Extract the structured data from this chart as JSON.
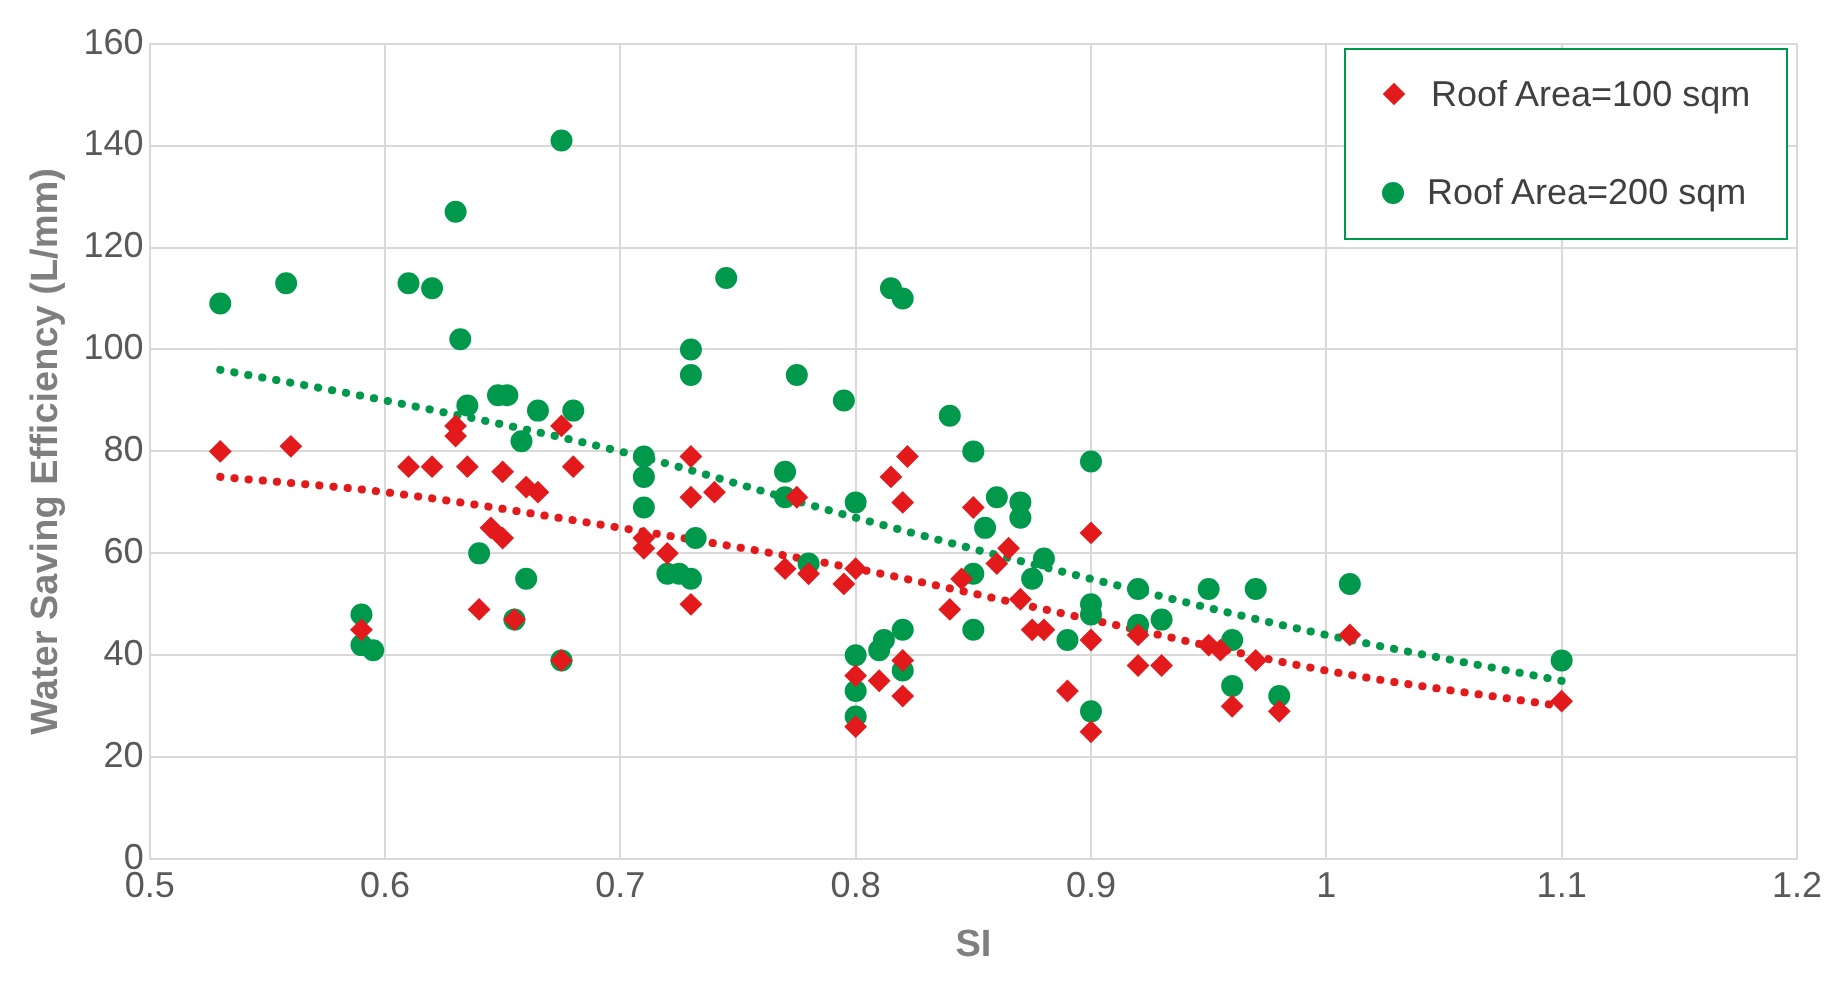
{
  "chart_data": {
    "type": "scatter",
    "xlabel": "SI",
    "ylabel": "Water Saving Efficiency (L/mm)",
    "xlim": [
      0.5,
      1.2
    ],
    "xticks": [
      {
        "value": 0.5,
        "label": "0.5"
      },
      {
        "value": 0.6,
        "label": "0.6"
      },
      {
        "value": 0.7,
        "label": "0.7"
      },
      {
        "value": 0.8,
        "label": "0.8"
      },
      {
        "value": 0.9,
        "label": "0.9"
      },
      {
        "value": 1,
        "label": "1"
      },
      {
        "value": 1.1,
        "label": "1.1"
      },
      {
        "value": 1.2,
        "label": "1.2"
      }
    ],
    "ylim": [
      0,
      160
    ],
    "yticks": [
      0,
      20,
      40,
      60,
      80,
      100,
      120,
      140,
      160
    ],
    "grid": true,
    "legend": "top right",
    "series": [
      {
        "name": "Roof Area=100 sqm",
        "type": "scatter",
        "marker": "diamond",
        "color": "#e31a1c",
        "x": [
          0.53,
          0.56,
          0.59,
          0.61,
          0.62,
          0.63,
          0.63,
          0.635,
          0.64,
          0.645,
          0.65,
          0.65,
          0.655,
          0.66,
          0.665,
          0.675,
          0.675,
          0.68,
          0.71,
          0.71,
          0.72,
          0.73,
          0.73,
          0.73,
          0.74,
          0.77,
          0.775,
          0.78,
          0.795,
          0.8,
          0.8,
          0.8,
          0.81,
          0.815,
          0.82,
          0.82,
          0.82,
          0.822,
          0.84,
          0.845,
          0.85,
          0.86,
          0.865,
          0.87,
          0.875,
          0.88,
          0.89,
          0.9,
          0.9,
          0.9,
          0.92,
          0.92,
          0.93,
          0.95,
          0.955,
          0.96,
          0.97,
          0.98,
          1.01,
          1.1
        ],
        "values": [
          80,
          81,
          45,
          77,
          77,
          85,
          83,
          77,
          49,
          65,
          63,
          76,
          47,
          73,
          72,
          85,
          39,
          77,
          61,
          63,
          60,
          79,
          71,
          50,
          72,
          57,
          71,
          56,
          54,
          57,
          36,
          26,
          35,
          75,
          39,
          32,
          70,
          79,
          49,
          55,
          69,
          58,
          61,
          51,
          45,
          45,
          33,
          64,
          43,
          25,
          44,
          38,
          38,
          42,
          41,
          30,
          39,
          29,
          44,
          31
        ]
      },
      {
        "name": "Roof Area=200 sqm",
        "type": "scatter",
        "marker": "circle",
        "color": "#00994c",
        "x": [
          0.53,
          0.558,
          0.59,
          0.59,
          0.595,
          0.61,
          0.62,
          0.63,
          0.632,
          0.635,
          0.64,
          0.648,
          0.652,
          0.655,
          0.658,
          0.66,
          0.665,
          0.675,
          0.675,
          0.68,
          0.71,
          0.71,
          0.71,
          0.72,
          0.725,
          0.73,
          0.73,
          0.73,
          0.732,
          0.745,
          0.77,
          0.77,
          0.775,
          0.78,
          0.795,
          0.8,
          0.8,
          0.8,
          0.8,
          0.81,
          0.812,
          0.815,
          0.82,
          0.82,
          0.82,
          0.84,
          0.85,
          0.85,
          0.85,
          0.855,
          0.86,
          0.87,
          0.87,
          0.875,
          0.88,
          0.89,
          0.9,
          0.9,
          0.9,
          0.9,
          0.92,
          0.92,
          0.93,
          0.95,
          0.96,
          0.96,
          0.97,
          0.98,
          1.01,
          1.1
        ],
        "values": [
          109,
          113,
          48,
          42,
          41,
          113,
          112,
          127,
          102,
          89,
          60,
          91,
          91,
          47,
          82,
          55,
          88,
          141,
          39,
          88,
          79,
          75,
          69,
          56,
          56,
          100,
          95,
          55,
          63,
          114,
          76,
          71,
          95,
          58,
          90,
          70,
          40,
          33,
          28,
          41,
          43,
          112,
          110,
          45,
          37,
          87,
          80,
          56,
          45,
          65,
          71,
          70,
          67,
          55,
          59,
          43,
          78,
          50,
          48,
          29,
          53,
          46,
          47,
          53,
          43,
          34,
          53,
          32,
          54,
          39
        ]
      },
      {
        "type": "line",
        "marker": "none",
        "line_style": "dotted",
        "color": "#e31a1c",
        "x": [
          0.53,
          0.6,
          0.7,
          0.8,
          0.9,
          1.0,
          1.1
        ],
        "values": [
          75,
          72,
          65,
          57,
          47,
          37,
          30
        ]
      },
      {
        "type": "line",
        "marker": "none",
        "line_style": "dotted",
        "color": "#00994c",
        "x": [
          0.53,
          0.6,
          0.7,
          0.8,
          0.9,
          1.0,
          1.1
        ],
        "values": [
          96,
          90,
          80,
          67,
          55,
          44,
          35
        ]
      }
    ]
  }
}
